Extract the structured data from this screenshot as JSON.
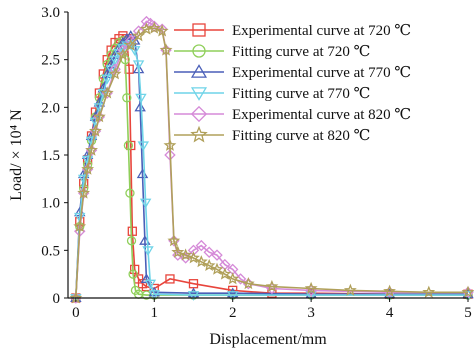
{
  "chart_data": {
    "type": "line",
    "xlabel": "Displacement/mm",
    "ylabel": "Load/ × 10⁴ N",
    "xlim": [
      -0.1,
      5
    ],
    "ylim": [
      0,
      3.0
    ],
    "x_ticks": [
      "0",
      "1",
      "2",
      "3",
      "4",
      "5"
    ],
    "y_ticks": [
      "0",
      "0.5",
      "1.0",
      "1.5",
      "2.0",
      "2.5",
      "3.0"
    ],
    "legend_position": "top-right",
    "grid": false,
    "series": [
      {
        "name": "Experimental curve at 720 ℃",
        "color": "#e8453c",
        "marker": "square",
        "x": [
          0.0,
          0.05,
          0.1,
          0.15,
          0.2,
          0.25,
          0.3,
          0.35,
          0.4,
          0.45,
          0.5,
          0.55,
          0.6,
          0.65,
          0.68,
          0.7,
          0.72,
          0.75,
          0.8,
          0.85,
          0.9,
          1.0,
          1.2,
          1.5,
          2.0,
          2.5,
          3.0,
          4.0,
          5.0
        ],
        "y": [
          0.0,
          0.8,
          1.2,
          1.45,
          1.7,
          1.95,
          2.15,
          2.35,
          2.5,
          2.6,
          2.68,
          2.72,
          2.75,
          2.72,
          2.4,
          1.6,
          0.7,
          0.3,
          0.2,
          0.15,
          0.12,
          0.1,
          0.2,
          0.15,
          0.08,
          0.05,
          0.05,
          0.04,
          0.04
        ]
      },
      {
        "name": "Fitting curve at 720 ℃",
        "color": "#8fcf5a",
        "marker": "circle",
        "x": [
          0.0,
          0.05,
          0.1,
          0.15,
          0.2,
          0.25,
          0.3,
          0.35,
          0.4,
          0.45,
          0.5,
          0.55,
          0.6,
          0.63,
          0.65,
          0.67,
          0.69,
          0.71,
          0.73,
          0.76,
          0.8,
          0.9,
          1.0,
          1.5,
          2.0,
          3.0,
          4.0,
          5.0
        ],
        "y": [
          0.0,
          0.75,
          1.15,
          1.4,
          1.65,
          1.9,
          2.1,
          2.3,
          2.45,
          2.55,
          2.62,
          2.68,
          2.7,
          2.5,
          2.1,
          1.6,
          1.1,
          0.6,
          0.25,
          0.08,
          0.04,
          0.03,
          0.03,
          0.03,
          0.03,
          0.03,
          0.03,
          0.03
        ]
      },
      {
        "name": "Experimental curve at 770 ℃",
        "color": "#4a5fb8",
        "marker": "triangle-up",
        "x": [
          0.0,
          0.05,
          0.1,
          0.15,
          0.2,
          0.25,
          0.3,
          0.35,
          0.4,
          0.45,
          0.5,
          0.55,
          0.6,
          0.65,
          0.7,
          0.75,
          0.8,
          0.82,
          0.85,
          0.88,
          0.9,
          1.0,
          1.5,
          2.0,
          3.0,
          4.0,
          5.0
        ],
        "y": [
          0.0,
          0.9,
          1.3,
          1.5,
          1.7,
          1.9,
          2.05,
          2.2,
          2.35,
          2.45,
          2.55,
          2.62,
          2.68,
          2.72,
          2.75,
          2.7,
          2.4,
          2.0,
          1.3,
          0.6,
          0.2,
          0.06,
          0.05,
          0.05,
          0.04,
          0.04,
          0.04
        ]
      },
      {
        "name": "Fitting curve at 770 ℃",
        "color": "#6fd4e8",
        "marker": "triangle-down",
        "x": [
          0.0,
          0.05,
          0.1,
          0.15,
          0.2,
          0.25,
          0.3,
          0.35,
          0.4,
          0.45,
          0.5,
          0.55,
          0.6,
          0.65,
          0.7,
          0.75,
          0.8,
          0.83,
          0.86,
          0.89,
          0.92,
          0.95,
          1.0,
          1.5,
          2.0,
          3.0,
          4.0,
          5.0
        ],
        "y": [
          0.0,
          0.85,
          1.25,
          1.45,
          1.65,
          1.85,
          2.0,
          2.15,
          2.3,
          2.4,
          2.5,
          2.57,
          2.62,
          2.65,
          2.66,
          2.6,
          2.45,
          2.1,
          1.6,
          1.0,
          0.5,
          0.15,
          0.04,
          0.03,
          0.03,
          0.03,
          0.03,
          0.03
        ]
      },
      {
        "name": "Experimental curve at 820 ℃",
        "color": "#d58ad8",
        "marker": "diamond",
        "x": [
          0.0,
          0.05,
          0.1,
          0.15,
          0.2,
          0.25,
          0.3,
          0.4,
          0.5,
          0.6,
          0.7,
          0.8,
          0.9,
          0.95,
          1.0,
          1.1,
          1.15,
          1.2,
          1.25,
          1.3,
          1.4,
          1.5,
          1.6,
          1.7,
          1.8,
          1.9,
          2.0,
          2.1,
          2.2,
          2.5,
          3.0,
          4.0,
          5.0
        ],
        "y": [
          0.0,
          0.7,
          1.1,
          1.35,
          1.55,
          1.75,
          1.9,
          2.15,
          2.4,
          2.6,
          2.7,
          2.8,
          2.9,
          2.88,
          2.85,
          2.82,
          2.6,
          1.5,
          0.6,
          0.45,
          0.42,
          0.5,
          0.55,
          0.48,
          0.45,
          0.35,
          0.3,
          0.2,
          0.15,
          0.1,
          0.08,
          0.06,
          0.06
        ]
      },
      {
        "name": "Fitting curve at 820 ℃",
        "color": "#b0a05a",
        "marker": "star",
        "x": [
          0.0,
          0.05,
          0.1,
          0.15,
          0.2,
          0.25,
          0.3,
          0.4,
          0.5,
          0.6,
          0.7,
          0.8,
          0.9,
          1.0,
          1.1,
          1.15,
          1.2,
          1.25,
          1.3,
          1.4,
          1.5,
          1.6,
          1.7,
          1.8,
          1.9,
          2.0,
          2.2,
          2.5,
          3.0,
          3.5,
          4.0,
          4.5,
          5.0
        ],
        "y": [
          0.0,
          0.75,
          1.1,
          1.35,
          1.55,
          1.75,
          1.9,
          2.15,
          2.35,
          2.55,
          2.65,
          2.75,
          2.82,
          2.83,
          2.8,
          2.6,
          1.6,
          0.6,
          0.48,
          0.45,
          0.42,
          0.38,
          0.34,
          0.3,
          0.25,
          0.2,
          0.15,
          0.12,
          0.1,
          0.08,
          0.07,
          0.06,
          0.06
        ]
      }
    ]
  }
}
